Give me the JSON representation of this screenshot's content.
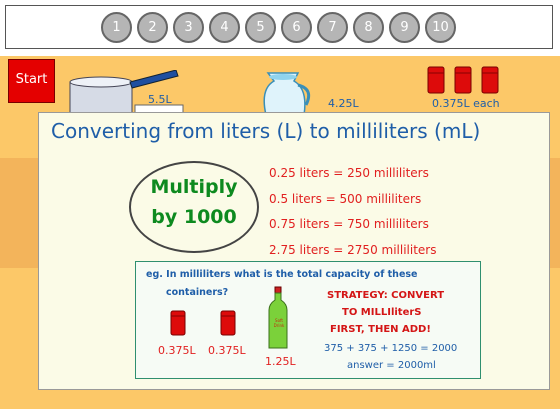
{
  "nav": {
    "pages": [
      "1",
      "2",
      "3",
      "4",
      "5",
      "6",
      "7",
      "8",
      "9",
      "10"
    ]
  },
  "start_label": "Start",
  "scene": {
    "pot_label": "5.5L",
    "jug_label": "4.25L",
    "cans_label": "0.375L each"
  },
  "card": {
    "title": "Converting from liters (L) to milliliters (mL)",
    "rule_line1": "Multiply",
    "rule_line2": "by 1000",
    "conversions": [
      "0.25 liters = 250 milliliters",
      "0.5 liters = 500 milliliters",
      "0.75 liters = 750 milliliters",
      "2.75 liters = 2750 milliliters"
    ],
    "example": {
      "question_line1": "eg. In milliliters what is the total capacity of these",
      "question_line2": "containers?",
      "can1_label": "0.375L",
      "can2_label": "0.375L",
      "bottle_label": "1.25L",
      "bottle_text": "Soft Drink",
      "strategy_line1": "STRATEGY: CONVERT",
      "strategy_line2": "TO  MILLIliterS",
      "strategy_line3": "FIRST, THEN ADD!",
      "calculation": "375 + 375 + 1250 =  2000",
      "answer": "answer = 2000ml"
    }
  },
  "colors": {
    "background": "#fcc868",
    "title_blue": "#1f5ea8",
    "red_text": "#e12020",
    "green_text": "#0d8a1f"
  }
}
